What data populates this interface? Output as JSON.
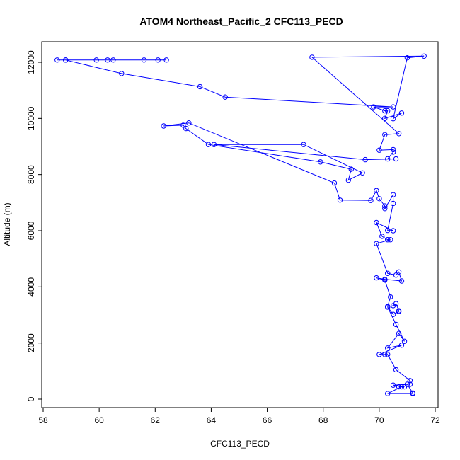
{
  "chart_data": {
    "type": "line",
    "title": "ATOM4 Northeast_Pacific_2 CFC113_PECD",
    "xlabel": "CFC113_PECD",
    "ylabel": "Altitude (m)",
    "xlim": [
      58,
      72
    ],
    "ylim": [
      0,
      12500
    ],
    "x_ticks": [
      58,
      60,
      62,
      64,
      66,
      68,
      70,
      72
    ],
    "y_ticks": [
      0,
      2000,
      4000,
      6000,
      8000,
      10000,
      12000
    ],
    "grid": false,
    "legend": "none",
    "series": [
      {
        "color": "#0000ff",
        "marker": "open-circle",
        "points": [
          [
            58.5,
            12080
          ],
          [
            58.8,
            12080
          ],
          [
            59.9,
            12080
          ],
          [
            60.3,
            12080
          ],
          [
            60.5,
            12080
          ],
          [
            61.6,
            12080
          ],
          [
            62.1,
            12080
          ],
          [
            62.4,
            12080
          ],
          [
            58.8,
            12080
          ],
          [
            60.8,
            11600
          ],
          [
            63.6,
            11130
          ],
          [
            64.5,
            10760
          ],
          [
            70.5,
            10410
          ],
          [
            69.8,
            10410
          ],
          [
            70.2,
            10270
          ],
          [
            70.3,
            10270
          ],
          [
            70.2,
            10000
          ],
          [
            70.8,
            10190
          ],
          [
            70.5,
            9990
          ],
          [
            71.0,
            12160
          ],
          [
            71.6,
            12220
          ],
          [
            67.6,
            12180
          ],
          [
            70.7,
            9460
          ],
          [
            70.2,
            9420
          ],
          [
            70.0,
            8870
          ],
          [
            70.5,
            8890
          ],
          [
            70.5,
            8800
          ],
          [
            70.3,
            8560
          ],
          [
            70.6,
            8560
          ],
          [
            69.5,
            8530
          ],
          [
            64.1,
            9070
          ],
          [
            67.3,
            9070
          ],
          [
            69.4,
            8060
          ],
          [
            68.9,
            7800
          ],
          [
            69.0,
            8190
          ],
          [
            67.9,
            8450
          ],
          [
            63.9,
            9070
          ],
          [
            63.1,
            9640
          ],
          [
            63.0,
            9760
          ],
          [
            62.3,
            9730
          ],
          [
            63.2,
            9840
          ],
          [
            68.4,
            7700
          ],
          [
            68.6,
            7090
          ],
          [
            69.7,
            7080
          ],
          [
            69.9,
            7430
          ],
          [
            70.0,
            7140
          ],
          [
            70.2,
            6880
          ],
          [
            70.2,
            6790
          ],
          [
            70.5,
            7280
          ],
          [
            70.5,
            6970
          ],
          [
            70.3,
            6010
          ],
          [
            70.5,
            6000
          ],
          [
            69.9,
            6290
          ],
          [
            70.1,
            5800
          ],
          [
            70.3,
            5680
          ],
          [
            70.4,
            5680
          ],
          [
            69.9,
            5540
          ],
          [
            70.3,
            4480
          ],
          [
            70.6,
            4420
          ],
          [
            70.7,
            4530
          ],
          [
            70.8,
            4210
          ],
          [
            70.2,
            4270
          ],
          [
            69.9,
            4320
          ],
          [
            70.2,
            4240
          ],
          [
            70.4,
            3640
          ],
          [
            70.3,
            3300
          ],
          [
            70.5,
            3330
          ],
          [
            70.6,
            3400
          ],
          [
            70.7,
            3150
          ],
          [
            70.7,
            3120
          ],
          [
            70.5,
            3020
          ],
          [
            70.3,
            3280
          ],
          [
            70.6,
            2660
          ],
          [
            70.9,
            2060
          ],
          [
            70.7,
            2340
          ],
          [
            70.3,
            1820
          ],
          [
            70.8,
            1920
          ],
          [
            70.0,
            1590
          ],
          [
            70.2,
            1590
          ],
          [
            70.3,
            1590
          ],
          [
            70.6,
            1050
          ],
          [
            71.1,
            660
          ],
          [
            71.1,
            530
          ],
          [
            70.5,
            500
          ],
          [
            70.9,
            440
          ],
          [
            70.7,
            440
          ],
          [
            70.8,
            440
          ],
          [
            70.3,
            200
          ],
          [
            71.2,
            200
          ],
          [
            71.2,
            220
          ],
          [
            71.0,
            530
          ]
        ]
      }
    ]
  }
}
